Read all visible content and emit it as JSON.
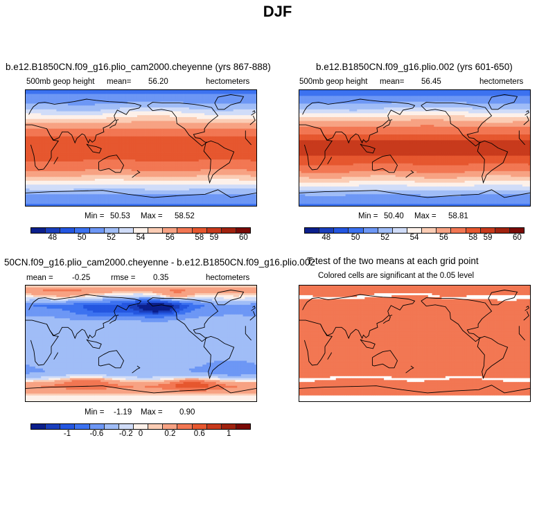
{
  "page_title": "DJF",
  "colorbar_colors": [
    "#0b1f8c",
    "#1a3fbd",
    "#2456e0",
    "#3c72f0",
    "#6d97f5",
    "#a0bdf7",
    "#d0dcf8",
    "#fdf1ea",
    "#fbcdb5",
    "#f7a283",
    "#f27753",
    "#e6572f",
    "#c83a1c",
    "#a0220f",
    "#7a0a05"
  ],
  "chart_data": [
    {
      "type": "heatmap",
      "panel": "top-left",
      "title": "b.e12.B1850CN.f09_g16.plio_cam2000.cheyenne (yrs 867-888)",
      "variable": "500mb geop height",
      "mean_label": "mean=",
      "mean": "56.20",
      "units": "hectometers",
      "min_label": "Min =",
      "min": "50.53",
      "max_label": "Max =",
      "max": "58.52",
      "colorbar_ticks": [
        "48",
        "50",
        "52",
        "54",
        "56",
        "58",
        "59",
        "60"
      ],
      "lat_profile": [
        50.8,
        51.1,
        51.6,
        52.3,
        53.2,
        54.3,
        55.4,
        56.5,
        57.3,
        57.9,
        58.2,
        58.3,
        58.3,
        58.2,
        58.0,
        57.6,
        57.0,
        56.1,
        55.0,
        53.8,
        52.7,
        51.8,
        51.2,
        50.9
      ]
    },
    {
      "type": "heatmap",
      "panel": "top-right",
      "title": "b.e12.B1850CN.f09_g16.plio.002 (yrs 601-650)",
      "variable": "500mb geop height",
      "mean_label": "mean=",
      "mean": "56.45",
      "units": "hectometers",
      "min_label": "Min =",
      "min": "50.40",
      "max_label": "Max =",
      "max": "58.81",
      "colorbar_ticks": [
        "48",
        "50",
        "52",
        "54",
        "56",
        "58",
        "59",
        "60"
      ],
      "lat_profile": [
        50.7,
        51.0,
        51.6,
        52.4,
        53.4,
        54.6,
        55.7,
        56.8,
        57.6,
        58.2,
        58.5,
        58.6,
        58.6,
        58.5,
        58.3,
        57.9,
        57.2,
        56.3,
        55.2,
        54.0,
        52.8,
        51.9,
        51.2,
        50.8
      ]
    },
    {
      "type": "heatmap",
      "panel": "bottom-left",
      "title": "50CN.f09_g16.plio_cam2000.cheyenne - b.e12.B1850CN.f09_g16.plio.002",
      "stat1_label": "mean =",
      "stat1": "-0.25",
      "stat2_label": "rmse =",
      "stat2": "0.35",
      "units": "hectometers",
      "min_label": "Min =",
      "min": "-1.19",
      "max_label": "Max =",
      "max": "0.90",
      "colorbar_ticks": [
        "-1",
        "-0.6",
        "-0.2",
        "0",
        "0.2",
        "0.6",
        "1"
      ],
      "lat_profile": [
        0.1,
        0.3,
        -0.1,
        -0.5,
        -0.7,
        -0.5,
        -0.4,
        -0.35,
        -0.3,
        -0.3,
        -0.3,
        -0.3,
        -0.3,
        -0.3,
        -0.3,
        -0.35,
        -0.35,
        -0.4,
        -0.3,
        0.1,
        0.4,
        0.3,
        0.05,
        0.0
      ]
    },
    {
      "type": "heatmap",
      "panel": "bottom-right",
      "title": "T-test of the two means at each grid point",
      "subtitle": "Colored cells are significant at the 0.05 level"
    }
  ]
}
